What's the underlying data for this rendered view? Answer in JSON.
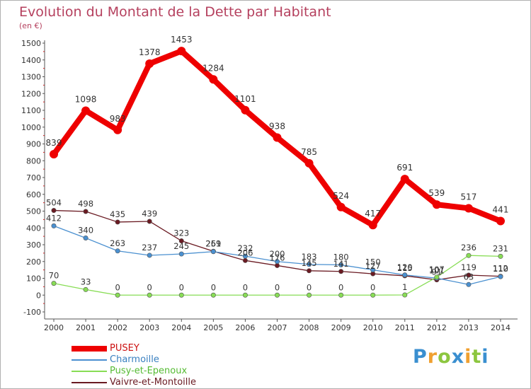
{
  "title": "Evolution du Montant de la Dette par Habitant",
  "unit_label": "(en €)",
  "logo": {
    "text": "Proxiti"
  },
  "chart_data": {
    "type": "line",
    "title": "Evolution du Montant de la Dette par Habitant",
    "subtitle": "(en €)",
    "categories": [
      "2000",
      "2001",
      "2002",
      "2003",
      "2004",
      "2005",
      "2006",
      "2007",
      "2008",
      "2009",
      "2010",
      "2011",
      "2012",
      "2013",
      "2014"
    ],
    "ylim": [
      -100,
      1500
    ],
    "yticks": [
      -100,
      0,
      100,
      200,
      300,
      400,
      500,
      600,
      700,
      800,
      900,
      1000,
      1100,
      1200,
      1300,
      1400,
      1500
    ],
    "grid": false,
    "legend_position": "bottom-left",
    "series": [
      {
        "name": "PUSEY",
        "color": "#ee0000",
        "values": [
          839,
          1098,
          983,
          1378,
          1453,
          1284,
          1101,
          938,
          785,
          524,
          417,
          691,
          539,
          517,
          441
        ]
      },
      {
        "name": "Charmoille",
        "color": "#4a90d0",
        "values": [
          412,
          340,
          263,
          237,
          245,
          259,
          232,
          200,
          183,
          180,
          150,
          120,
          101,
          63,
          110
        ]
      },
      {
        "name": "Pusy-et-Epenoux",
        "color": "#88dd55",
        "values": [
          70,
          33,
          0,
          0,
          0,
          0,
          0,
          0,
          0,
          0,
          0,
          1,
          107,
          236,
          231
        ]
      },
      {
        "name": "Vaivre-et-Montoille",
        "color": "#6a1a22",
        "values": [
          504,
          498,
          435,
          439,
          323,
          261,
          206,
          176,
          145,
          141,
          127,
          115,
          91,
          119,
          112
        ]
      }
    ]
  }
}
